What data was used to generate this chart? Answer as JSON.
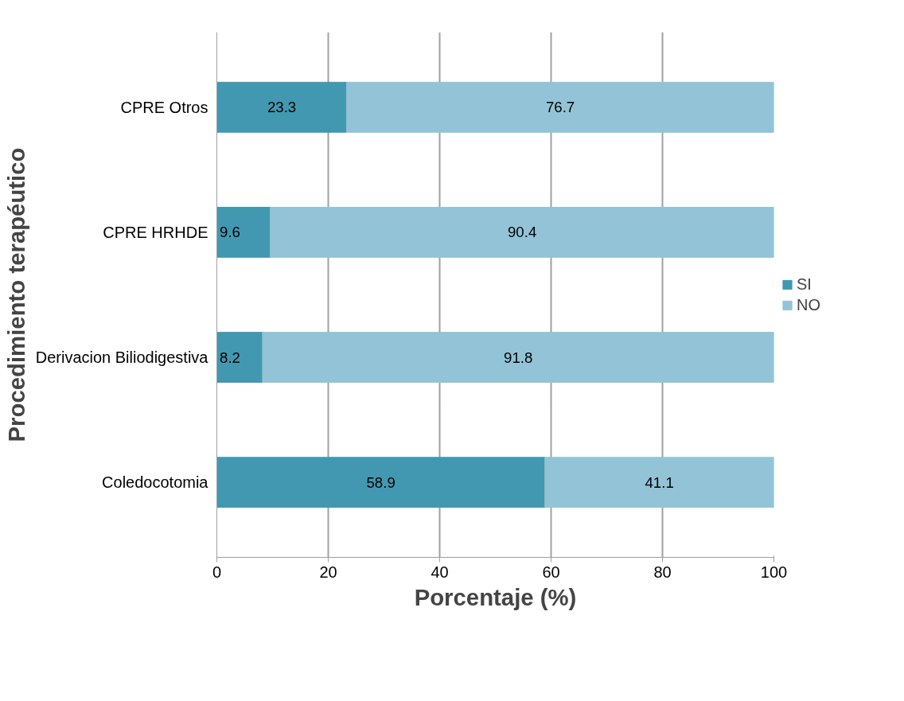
{
  "chart_data": {
    "type": "bar",
    "orientation": "horizontal",
    "stacked": true,
    "xlabel": "Porcentaje (%)",
    "ylabel": "Procedimiento terapéutico",
    "categories": [
      "CPRE Otros",
      "CPRE HRHDE",
      "Derivacion Biliodigestiva",
      "Coledocotomia"
    ],
    "series": [
      {
        "name": "SI",
        "color": "#4298b0",
        "values": [
          23.3,
          9.6,
          8.2,
          58.9
        ]
      },
      {
        "name": "NO",
        "color": "#93c3d6",
        "values": [
          76.7,
          90.4,
          91.8,
          41.1
        ]
      }
    ],
    "xlim": [
      0,
      100
    ],
    "xticks": [
      0,
      20,
      40,
      60,
      80,
      100
    ],
    "grid": "x",
    "legend": "right",
    "data_labels": true
  }
}
